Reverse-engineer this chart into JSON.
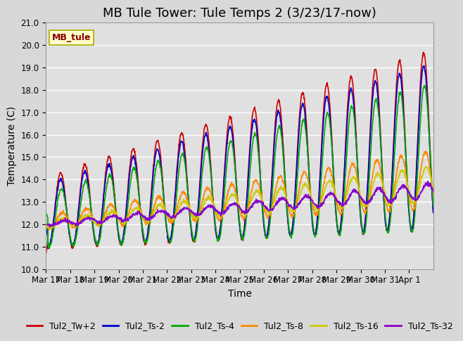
{
  "title": "MB Tule Tower: Tule Temps 2 (3/23/17-now)",
  "xlabel": "Time",
  "ylabel": "Temperature (C)",
  "ylim": [
    10.0,
    21.0
  ],
  "yticks": [
    10.0,
    11.0,
    12.0,
    13.0,
    14.0,
    15.0,
    16.0,
    17.0,
    18.0,
    19.0,
    20.0,
    21.0
  ],
  "xtick_labels": [
    "Mar 17",
    "Mar 18",
    "Mar 19",
    "Mar 20",
    "Mar 21",
    "Mar 22",
    "Mar 23",
    "Mar 24",
    "Mar 25",
    "Mar 26",
    "Mar 27",
    "Mar 28",
    "Mar 29",
    "Mar 30",
    "Mar 31",
    "Apr 1"
  ],
  "legend_labels": [
    "Tul2_Tw+2",
    "Tul2_Ts-2",
    "Tul2_Ts-4",
    "Tul2_Ts-8",
    "Tul2_Ts-16",
    "Tul2_Ts-32"
  ],
  "line_colors": [
    "#cc0000",
    "#0000cc",
    "#00aa00",
    "#ff8800",
    "#cccc00",
    "#8800cc"
  ],
  "station_label": "MB_tule",
  "station_label_color": "#8b0000",
  "station_box_facecolor": "#ffffcc",
  "station_box_edgecolor": "#aaaa00",
  "fig_bg_color": "#d8d8d8",
  "plot_bg_color": "#e0e0e0",
  "grid_color": "#ffffff",
  "title_fontsize": 13,
  "axis_label_fontsize": 10,
  "tick_fontsize": 8.5,
  "legend_fontsize": 9,
  "linewidth": 1.2
}
